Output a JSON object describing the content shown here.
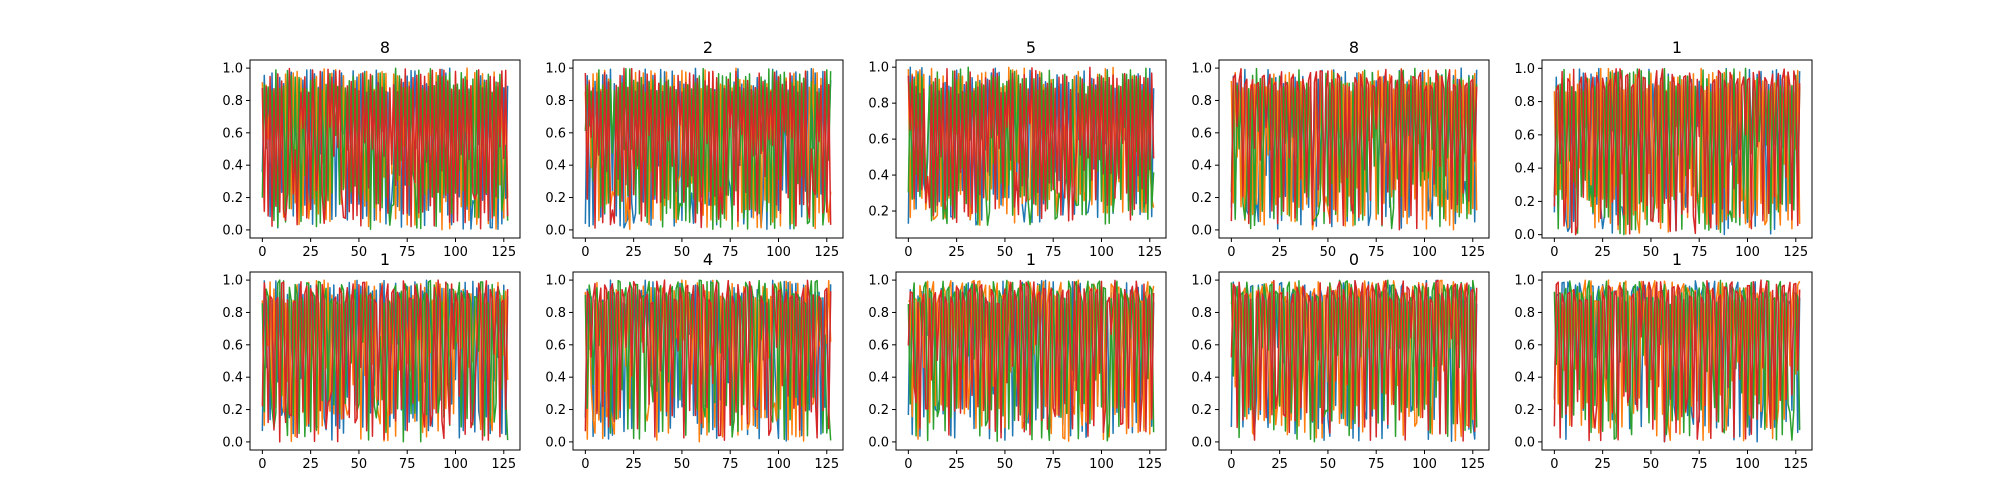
{
  "figure": {
    "background": "#ffffff"
  },
  "chart_data": [
    {
      "type": "line",
      "title": "8",
      "xlim": [
        -6.4,
        133.4
      ],
      "ylim": [
        -0.05,
        1.05
      ],
      "xticks": [
        0,
        25,
        50,
        75,
        100,
        125
      ],
      "yticks": [
        0.0,
        0.2,
        0.4,
        0.6,
        0.8,
        1.0
      ],
      "tick_labels_x": [
        "0",
        "25",
        "50",
        "75",
        "100",
        "125"
      ],
      "tick_labels_y": [
        "0.0",
        "0.2",
        "0.4",
        "0.6",
        "0.8",
        "1.0"
      ],
      "n_points": 128,
      "grid": false,
      "series_colors": [
        "#1f77b4",
        "#ff7f0e",
        "#2ca02c",
        "#d62728"
      ],
      "seed": 11
    },
    {
      "type": "line",
      "title": "2",
      "xlim": [
        -6.4,
        133.4
      ],
      "ylim": [
        -0.05,
        1.05
      ],
      "xticks": [
        0,
        25,
        50,
        75,
        100,
        125
      ],
      "yticks": [
        0.0,
        0.2,
        0.4,
        0.6,
        0.8,
        1.0
      ],
      "tick_labels_x": [
        "0",
        "25",
        "50",
        "75",
        "100",
        "125"
      ],
      "tick_labels_y": [
        "0.0",
        "0.2",
        "0.4",
        "0.6",
        "0.8",
        "1.0"
      ],
      "n_points": 128,
      "grid": false,
      "series_colors": [
        "#1f77b4",
        "#ff7f0e",
        "#2ca02c",
        "#d62728"
      ],
      "seed": 23
    },
    {
      "type": "line",
      "title": "5",
      "xlim": [
        -6.4,
        133.4
      ],
      "ylim": [
        0.05,
        1.04
      ],
      "xticks": [
        0,
        25,
        50,
        75,
        100,
        125
      ],
      "yticks": [
        0.2,
        0.4,
        0.6,
        0.8,
        1.0
      ],
      "tick_labels_x": [
        "0",
        "25",
        "50",
        "75",
        "100",
        "125"
      ],
      "tick_labels_y": [
        "0.2",
        "0.4",
        "0.6",
        "0.8",
        "1.0"
      ],
      "n_points": 128,
      "grid": false,
      "series_colors": [
        "#1f77b4",
        "#ff7f0e",
        "#2ca02c",
        "#d62728"
      ],
      "seed": 37
    },
    {
      "type": "line",
      "title": "8",
      "xlim": [
        -6.4,
        133.4
      ],
      "ylim": [
        -0.05,
        1.05
      ],
      "xticks": [
        0,
        25,
        50,
        75,
        100,
        125
      ],
      "yticks": [
        0.0,
        0.2,
        0.4,
        0.6,
        0.8,
        1.0
      ],
      "tick_labels_x": [
        "0",
        "25",
        "50",
        "75",
        "100",
        "125"
      ],
      "tick_labels_y": [
        "0.0",
        "0.2",
        "0.4",
        "0.6",
        "0.8",
        "1.0"
      ],
      "n_points": 128,
      "grid": false,
      "series_colors": [
        "#1f77b4",
        "#ff7f0e",
        "#2ca02c",
        "#d62728"
      ],
      "seed": 41
    },
    {
      "type": "line",
      "title": "1",
      "xlim": [
        -6.4,
        133.4
      ],
      "ylim": [
        -0.02,
        1.05
      ],
      "xticks": [
        0,
        25,
        50,
        75,
        100,
        125
      ],
      "yticks": [
        0.0,
        0.2,
        0.4,
        0.6,
        0.8,
        1.0
      ],
      "tick_labels_x": [
        "0",
        "25",
        "50",
        "75",
        "100",
        "125"
      ],
      "tick_labels_y": [
        "0.0",
        "0.2",
        "0.4",
        "0.6",
        "0.8",
        "1.0"
      ],
      "n_points": 128,
      "grid": false,
      "series_colors": [
        "#1f77b4",
        "#ff7f0e",
        "#2ca02c",
        "#d62728"
      ],
      "seed": 53
    },
    {
      "type": "line",
      "title": "1",
      "xlim": [
        -6.4,
        133.4
      ],
      "ylim": [
        -0.05,
        1.05
      ],
      "xticks": [
        0,
        25,
        50,
        75,
        100,
        125
      ],
      "yticks": [
        0.0,
        0.2,
        0.4,
        0.6,
        0.8,
        1.0
      ],
      "tick_labels_x": [
        "0",
        "25",
        "50",
        "75",
        "100",
        "125"
      ],
      "tick_labels_y": [
        "0.0",
        "0.2",
        "0.4",
        "0.6",
        "0.8",
        "1.0"
      ],
      "n_points": 128,
      "grid": false,
      "series_colors": [
        "#1f77b4",
        "#ff7f0e",
        "#2ca02c",
        "#d62728"
      ],
      "seed": 61
    },
    {
      "type": "line",
      "title": "4",
      "xlim": [
        -6.4,
        133.4
      ],
      "ylim": [
        -0.05,
        1.05
      ],
      "xticks": [
        0,
        25,
        50,
        75,
        100,
        125
      ],
      "yticks": [
        0.0,
        0.2,
        0.4,
        0.6,
        0.8,
        1.0
      ],
      "tick_labels_x": [
        "0",
        "25",
        "50",
        "75",
        "100",
        "125"
      ],
      "tick_labels_y": [
        "0.0",
        "0.2",
        "0.4",
        "0.6",
        "0.8",
        "1.0"
      ],
      "n_points": 128,
      "grid": false,
      "series_colors": [
        "#1f77b4",
        "#ff7f0e",
        "#2ca02c",
        "#d62728"
      ],
      "seed": 71
    },
    {
      "type": "line",
      "title": "1",
      "xlim": [
        -6.4,
        133.4
      ],
      "ylim": [
        -0.05,
        1.05
      ],
      "xticks": [
        0,
        25,
        50,
        75,
        100,
        125
      ],
      "yticks": [
        0.0,
        0.2,
        0.4,
        0.6,
        0.8,
        1.0
      ],
      "tick_labels_x": [
        "0",
        "25",
        "50",
        "75",
        "100",
        "125"
      ],
      "tick_labels_y": [
        "0.0",
        "0.2",
        "0.4",
        "0.6",
        "0.8",
        "1.0"
      ],
      "n_points": 128,
      "grid": false,
      "series_colors": [
        "#1f77b4",
        "#ff7f0e",
        "#2ca02c",
        "#d62728"
      ],
      "seed": 83
    },
    {
      "type": "line",
      "title": "0",
      "xlim": [
        -6.4,
        133.4
      ],
      "ylim": [
        -0.05,
        1.05
      ],
      "xticks": [
        0,
        25,
        50,
        75,
        100,
        125
      ],
      "yticks": [
        0.0,
        0.2,
        0.4,
        0.6,
        0.8,
        1.0
      ],
      "tick_labels_x": [
        "0",
        "25",
        "50",
        "75",
        "100",
        "125"
      ],
      "tick_labels_y": [
        "0.0",
        "0.2",
        "0.4",
        "0.6",
        "0.8",
        "1.0"
      ],
      "n_points": 128,
      "grid": false,
      "series_colors": [
        "#1f77b4",
        "#ff7f0e",
        "#2ca02c",
        "#d62728"
      ],
      "seed": 97
    },
    {
      "type": "line",
      "title": "1",
      "xlim": [
        -6.4,
        133.4
      ],
      "ylim": [
        -0.05,
        1.05
      ],
      "xticks": [
        0,
        25,
        50,
        75,
        100,
        125
      ],
      "yticks": [
        0.0,
        0.2,
        0.4,
        0.6,
        0.8,
        1.0
      ],
      "tick_labels_x": [
        "0",
        "25",
        "50",
        "75",
        "100",
        "125"
      ],
      "tick_labels_y": [
        "0.0",
        "0.2",
        "0.4",
        "0.6",
        "0.8",
        "1.0"
      ],
      "n_points": 128,
      "grid": false,
      "series_colors": [
        "#1f77b4",
        "#ff7f0e",
        "#2ca02c",
        "#d62728"
      ],
      "seed": 109
    }
  ]
}
